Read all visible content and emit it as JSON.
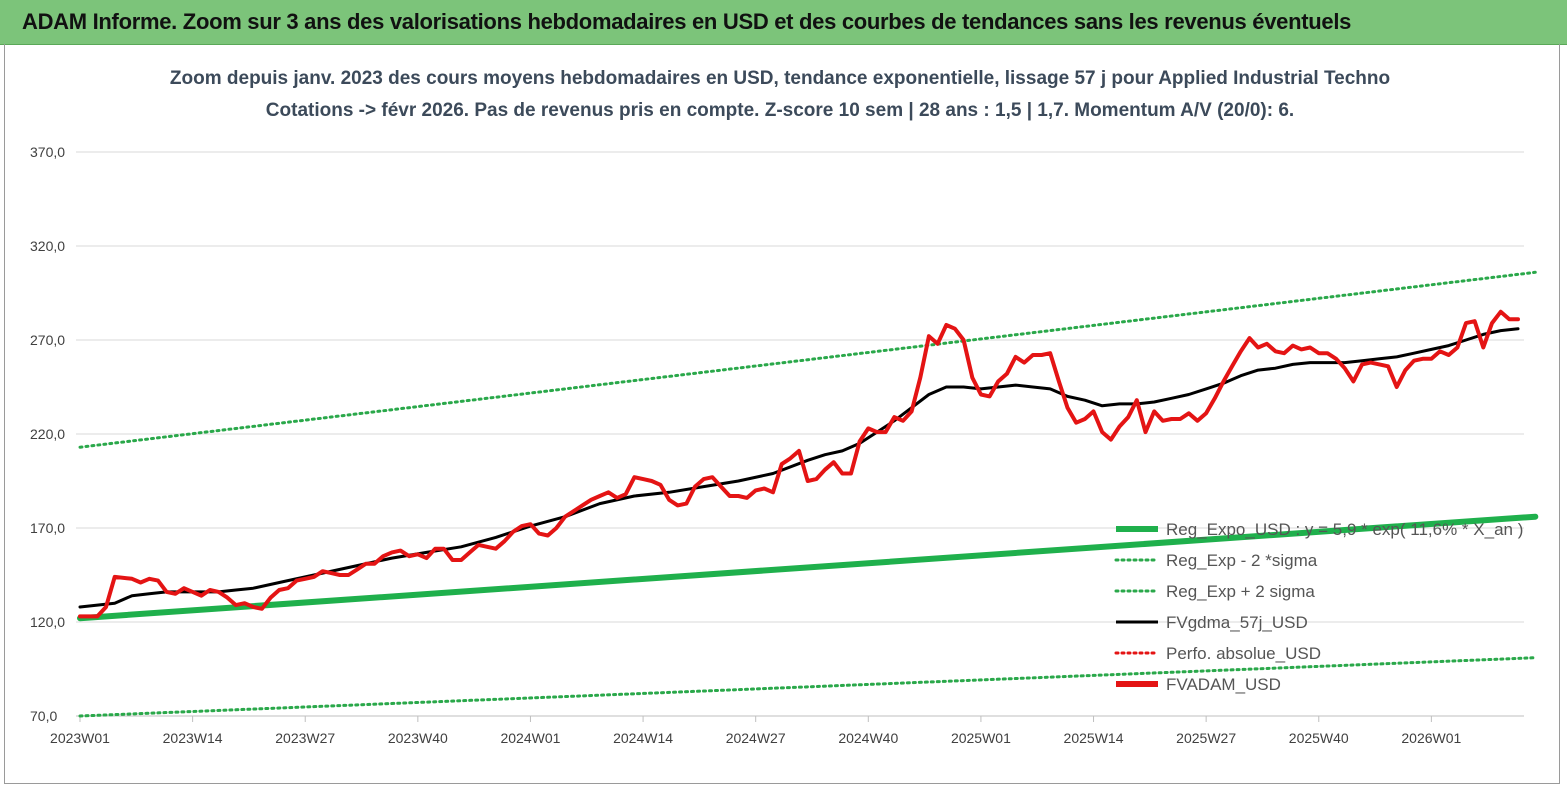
{
  "header": {
    "title": "ADAM Informe. Zoom sur 3 ans des valorisations hebdomadaires en USD et des courbes de tendances sans les revenus éventuels"
  },
  "colors": {
    "header_bg": "#7cc47a",
    "regression": "#1fb04c",
    "sigma_bands": "#2aa84a",
    "smoothed": "#000000",
    "price": "#e41414",
    "perfo": "#e41414"
  },
  "chart_data": {
    "type": "line",
    "title_line1": "Zoom depuis janv. 2023 des cours moyens hebdomadaires en USD, tendance exponentielle, lissage 57 j pour Applied Industrial Techno",
    "title_line2": "Cotations -> févr 2026. Pas de revenus pris en compte. Z-score 10 sem | 28 ans : 1,5 | 1,7. Momentum A/V (20/0): 6.",
    "ylim": [
      70,
      380
    ],
    "y_ticks": [
      "70,0",
      "120,0",
      "170,0",
      "220,0",
      "270,0",
      "320,0",
      "370,0"
    ],
    "y_tick_values": [
      70,
      120,
      170,
      220,
      270,
      320,
      370
    ],
    "x_ticks": [
      "2023W01",
      "2023W14",
      "2023W27",
      "2023W40",
      "2024W01",
      "2024W14",
      "2024W27",
      "2024W40",
      "2025W01",
      "2025W14",
      "2025W27",
      "2025W40",
      "2026W01"
    ],
    "x_tick_weeks": [
      0,
      13,
      26,
      39,
      52,
      65,
      78,
      91,
      104,
      117,
      130,
      143,
      156
    ],
    "x_range_weeks": [
      0,
      168
    ],
    "grid": "horizontal",
    "legend_position": "right",
    "legend": [
      {
        "name": "Reg_Expo_USD : y = 5,9 * exp( 11,6% * X_an )",
        "style": "thick-solid",
        "color": "#1fb04c"
      },
      {
        "name": "Reg_Exp - 2 *sigma",
        "style": "dotted",
        "color": "#2aa84a"
      },
      {
        "name": "Reg_Exp + 2 sigma",
        "style": "dotted",
        "color": "#2aa84a"
      },
      {
        "name": "FVgdma_57j_USD",
        "style": "solid",
        "color": "#000000"
      },
      {
        "name": "Perfo. absolue_USD",
        "style": "dotted",
        "color": "#e41414"
      },
      {
        "name": "FVADAM_USD",
        "style": "thick-solid",
        "color": "#e41414"
      }
    ],
    "series": [
      {
        "name": "Reg_Expo_USD : y = 5,9 * exp( 11,6% * X_an )",
        "points": [
          [
            0,
            122
          ],
          [
            168,
            176
          ]
        ]
      },
      {
        "name": "Reg_Exp - 2 *sigma",
        "points": [
          [
            0,
            70
          ],
          [
            168,
            101
          ]
        ]
      },
      {
        "name": "Reg_Exp + 2 sigma",
        "points": [
          [
            0,
            213
          ],
          [
            168,
            306
          ]
        ]
      },
      {
        "name": "FVgdma_57j_USD",
        "points": [
          [
            0,
            128
          ],
          [
            4,
            130
          ],
          [
            6,
            134
          ],
          [
            8,
            135
          ],
          [
            10,
            136
          ],
          [
            14,
            136
          ],
          [
            16,
            136
          ],
          [
            18,
            137
          ],
          [
            20,
            138
          ],
          [
            24,
            142
          ],
          [
            28,
            146
          ],
          [
            32,
            150
          ],
          [
            34,
            152
          ],
          [
            36,
            154
          ],
          [
            40,
            157
          ],
          [
            44,
            160
          ],
          [
            48,
            165
          ],
          [
            52,
            171
          ],
          [
            56,
            176
          ],
          [
            60,
            183
          ],
          [
            64,
            187
          ],
          [
            68,
            189
          ],
          [
            72,
            192
          ],
          [
            76,
            195
          ],
          [
            80,
            199
          ],
          [
            84,
            206
          ],
          [
            86,
            209
          ],
          [
            88,
            211
          ],
          [
            90,
            215
          ],
          [
            92,
            221
          ],
          [
            94,
            227
          ],
          [
            96,
            234
          ],
          [
            98,
            241
          ],
          [
            100,
            245
          ],
          [
            102,
            245
          ],
          [
            104,
            244
          ],
          [
            106,
            245
          ],
          [
            108,
            246
          ],
          [
            110,
            245
          ],
          [
            112,
            244
          ],
          [
            114,
            240
          ],
          [
            116,
            238
          ],
          [
            118,
            235
          ],
          [
            120,
            236
          ],
          [
            122,
            236
          ],
          [
            124,
            237
          ],
          [
            126,
            239
          ],
          [
            128,
            241
          ],
          [
            130,
            244
          ],
          [
            132,
            247
          ],
          [
            134,
            251
          ],
          [
            136,
            254
          ],
          [
            138,
            255
          ],
          [
            140,
            257
          ],
          [
            142,
            258
          ],
          [
            144,
            258
          ],
          [
            146,
            258
          ],
          [
            148,
            259
          ],
          [
            150,
            260
          ],
          [
            152,
            261
          ],
          [
            154,
            263
          ],
          [
            156,
            265
          ],
          [
            158,
            267
          ],
          [
            160,
            270
          ],
          [
            162,
            273
          ],
          [
            164,
            275
          ],
          [
            166,
            276
          ]
        ]
      },
      {
        "name": "FVADAM_USD",
        "points": [
          [
            0,
            123
          ],
          [
            2,
            123
          ],
          [
            3,
            128
          ],
          [
            4,
            144
          ],
          [
            6,
            143
          ],
          [
            7,
            141
          ],
          [
            8,
            143
          ],
          [
            9,
            142
          ],
          [
            10,
            136
          ],
          [
            11,
            135
          ],
          [
            12,
            138
          ],
          [
            13,
            136
          ],
          [
            14,
            134
          ],
          [
            15,
            137
          ],
          [
            16,
            136
          ],
          [
            17,
            133
          ],
          [
            18,
            129
          ],
          [
            19,
            130
          ],
          [
            20,
            128
          ],
          [
            21,
            127
          ],
          [
            22,
            133
          ],
          [
            23,
            137
          ],
          [
            24,
            138
          ],
          [
            25,
            142
          ],
          [
            26,
            143
          ],
          [
            27,
            144
          ],
          [
            28,
            147
          ],
          [
            29,
            146
          ],
          [
            30,
            145
          ],
          [
            31,
            145
          ],
          [
            32,
            148
          ],
          [
            33,
            151
          ],
          [
            34,
            151
          ],
          [
            35,
            155
          ],
          [
            36,
            157
          ],
          [
            37,
            158
          ],
          [
            38,
            155
          ],
          [
            39,
            156
          ],
          [
            40,
            154
          ],
          [
            41,
            159
          ],
          [
            42,
            159
          ],
          [
            43,
            153
          ],
          [
            44,
            153
          ],
          [
            45,
            157
          ],
          [
            46,
            161
          ],
          [
            47,
            160
          ],
          [
            48,
            159
          ],
          [
            49,
            163
          ],
          [
            50,
            168
          ],
          [
            51,
            171
          ],
          [
            52,
            172
          ],
          [
            53,
            167
          ],
          [
            54,
            166
          ],
          [
            55,
            170
          ],
          [
            56,
            176
          ],
          [
            57,
            179
          ],
          [
            58,
            182
          ],
          [
            59,
            185
          ],
          [
            60,
            187
          ],
          [
            61,
            189
          ],
          [
            62,
            186
          ],
          [
            63,
            188
          ],
          [
            64,
            197
          ],
          [
            65,
            196
          ],
          [
            66,
            195
          ],
          [
            67,
            193
          ],
          [
            68,
            185
          ],
          [
            69,
            182
          ],
          [
            70,
            183
          ],
          [
            71,
            192
          ],
          [
            72,
            196
          ],
          [
            73,
            197
          ],
          [
            74,
            192
          ],
          [
            75,
            187
          ],
          [
            76,
            187
          ],
          [
            77,
            186
          ],
          [
            78,
            190
          ],
          [
            79,
            191
          ],
          [
            80,
            189
          ],
          [
            81,
            204
          ],
          [
            82,
            207
          ],
          [
            83,
            211
          ],
          [
            84,
            195
          ],
          [
            85,
            196
          ],
          [
            86,
            201
          ],
          [
            87,
            205
          ],
          [
            88,
            199
          ],
          [
            89,
            199
          ],
          [
            90,
            216
          ],
          [
            91,
            223
          ],
          [
            92,
            221
          ],
          [
            93,
            221
          ],
          [
            94,
            229
          ],
          [
            95,
            227
          ],
          [
            96,
            232
          ],
          [
            97,
            250
          ],
          [
            98,
            272
          ],
          [
            99,
            268
          ],
          [
            100,
            278
          ],
          [
            101,
            276
          ],
          [
            102,
            270
          ],
          [
            103,
            250
          ],
          [
            104,
            241
          ],
          [
            105,
            240
          ],
          [
            106,
            248
          ],
          [
            107,
            252
          ],
          [
            108,
            261
          ],
          [
            109,
            258
          ],
          [
            110,
            262
          ],
          [
            111,
            262
          ],
          [
            112,
            263
          ],
          [
            113,
            248
          ],
          [
            114,
            234
          ],
          [
            115,
            226
          ],
          [
            116,
            228
          ],
          [
            117,
            232
          ],
          [
            118,
            221
          ],
          [
            119,
            217
          ],
          [
            120,
            224
          ],
          [
            121,
            229
          ],
          [
            122,
            238
          ],
          [
            123,
            221
          ],
          [
            124,
            232
          ],
          [
            125,
            227
          ],
          [
            126,
            228
          ],
          [
            127,
            228
          ],
          [
            128,
            231
          ],
          [
            129,
            227
          ],
          [
            130,
            231
          ],
          [
            131,
            239
          ],
          [
            132,
            248
          ],
          [
            133,
            256
          ],
          [
            134,
            264
          ],
          [
            135,
            271
          ],
          [
            136,
            266
          ],
          [
            137,
            268
          ],
          [
            138,
            264
          ],
          [
            139,
            263
          ],
          [
            140,
            267
          ],
          [
            141,
            265
          ],
          [
            142,
            266
          ],
          [
            143,
            263
          ],
          [
            144,
            263
          ],
          [
            145,
            260
          ],
          [
            146,
            255
          ],
          [
            147,
            248
          ],
          [
            148,
            257
          ],
          [
            149,
            258
          ],
          [
            150,
            257
          ],
          [
            151,
            256
          ],
          [
            152,
            245
          ],
          [
            153,
            254
          ],
          [
            154,
            259
          ],
          [
            155,
            260
          ],
          [
            156,
            260
          ],
          [
            157,
            264
          ],
          [
            158,
            262
          ],
          [
            159,
            266
          ],
          [
            160,
            279
          ],
          [
            161,
            280
          ],
          [
            162,
            266
          ],
          [
            163,
            279
          ],
          [
            164,
            285
          ],
          [
            165,
            281
          ],
          [
            166,
            281
          ]
        ]
      }
    ]
  }
}
